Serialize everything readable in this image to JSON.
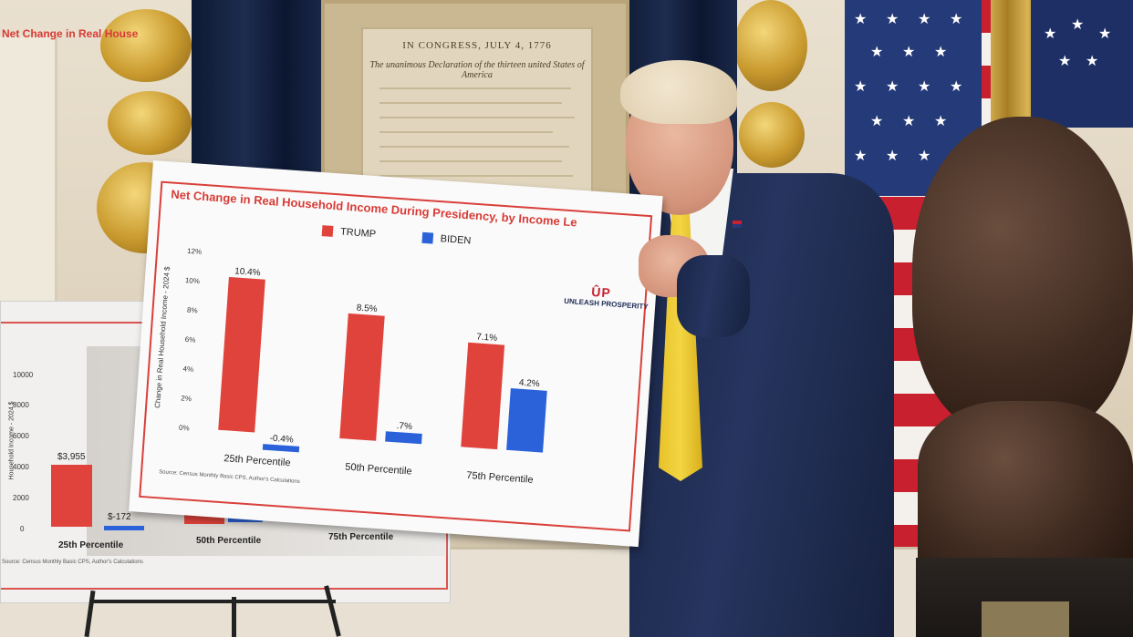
{
  "back_board": {
    "title": "Net Change in Real House",
    "y_ticks": [
      "10000",
      "8000",
      "6000",
      "4000",
      "2000",
      "0"
    ],
    "y_label": "Household Income - 2024 $",
    "values": [
      "$3,955",
      "$-172"
    ],
    "categories": [
      "25th Percentile",
      "50th Percentile",
      "75th Percentile"
    ],
    "source": "Source: Census Monthly Basic CPS, Author's Calculations",
    "colors": {
      "trump": "#e0433b",
      "biden": "#2b62d9",
      "accent": "#d83b36"
    }
  },
  "front_board": {
    "title": "Net Change in Real Household Income During Presidency, by Income Le",
    "legend": [
      {
        "label": "TRUMP",
        "color": "#e0433b"
      },
      {
        "label": "BIDEN",
        "color": "#2b62d9"
      }
    ],
    "logo_mark": "ÛP",
    "logo_text": "UNLEASH PROSPERITY",
    "source": "Source: Census Monthly Basic CPS, Author's Calculations"
  },
  "chart_data": {
    "type": "bar",
    "title": "Net Change in Real Household Income During Presidency, by Income Le",
    "ylabel": "Change in Real Household Income - 2024 $",
    "ylim": [
      0,
      12
    ],
    "y_ticks": [
      "0%",
      "2%",
      "4%",
      "6%",
      "8%",
      "10%",
      "12%"
    ],
    "categories": [
      "25th Percentile",
      "50th Percentile",
      "75th Percentile"
    ],
    "series": [
      {
        "name": "TRUMP",
        "values": [
          10.4,
          8.5,
          7.1
        ],
        "labels": [
          "10.4%",
          "8.5%",
          "7.1%"
        ],
        "color": "#e0433b"
      },
      {
        "name": "BIDEN",
        "values": [
          -0.4,
          0.7,
          4.2
        ],
        "labels": [
          "-0.4%",
          ".7%",
          "4.2%"
        ],
        "color": "#2b62d9"
      }
    ]
  },
  "wall_document": {
    "title": "IN CONGRESS, JULY 4, 1776",
    "subtitle": "The unanimous Declaration of the thirteen united States of America"
  }
}
